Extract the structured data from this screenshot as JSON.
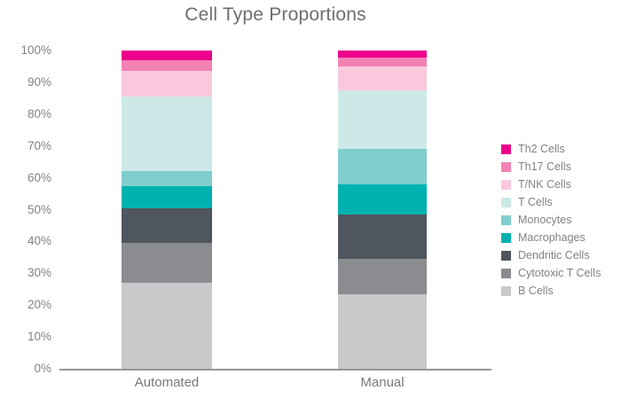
{
  "title": "Cell Type Proportions",
  "chart_data": {
    "type": "bar",
    "stacked": true,
    "unit": "percent",
    "title": "Cell Type Proportions",
    "xlabel": "",
    "ylabel": "",
    "ylim": [
      0,
      100
    ],
    "grid": false,
    "legend_position": "right",
    "categories": [
      "Automated",
      "Manual"
    ],
    "yticks": [
      "0%",
      "10%",
      "20%",
      "30%",
      "40%",
      "50%",
      "60%",
      "70%",
      "80%",
      "90%",
      "100%"
    ],
    "series": [
      {
        "name": "Th2 Cells",
        "color": "#ec008c",
        "values": [
          3.0,
          2.2
        ]
      },
      {
        "name": "Th17 Cells",
        "color": "#f282b4",
        "values": [
          3.5,
          2.8
        ]
      },
      {
        "name": "T/NK Cells",
        "color": "#f9c8dc",
        "values": [
          8.0,
          7.5
        ]
      },
      {
        "name": "T Cells",
        "color": "#cde9e7",
        "values": [
          23.5,
          18.5
        ]
      },
      {
        "name": "Monocytes",
        "color": "#7fcecd",
        "values": [
          4.5,
          11.0
        ]
      },
      {
        "name": "Macrophages",
        "color": "#00b2af",
        "values": [
          7.0,
          9.5
        ]
      },
      {
        "name": "Dendritic Cells",
        "color": "#4f565f",
        "values": [
          11.0,
          14.0
        ]
      },
      {
        "name": "Cytotoxic T Cells",
        "color": "#8a8c8f",
        "values": [
          12.5,
          11.0
        ]
      },
      {
        "name": "B Cells",
        "color": "#c8c9cb",
        "values": [
          27.0,
          23.5
        ]
      }
    ]
  },
  "colors": {
    "title_text": "#6d6e71",
    "axis_line": "#939598",
    "tick_text": "#808285",
    "category_text": "#77787b",
    "legend_text": "#808285",
    "background": "#ffffff"
  }
}
